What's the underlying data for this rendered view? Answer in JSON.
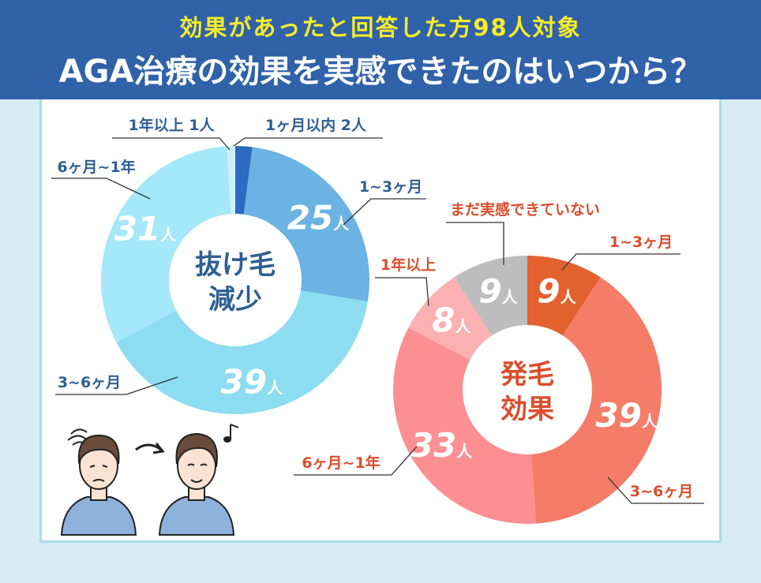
{
  "header": {
    "subtitle": "効果があったと回答した方98人対象",
    "title": "AGA治療の効果を実感できたのはいつから？"
  },
  "chart_data": [
    {
      "type": "pie",
      "title": "抜け毛減少",
      "unit": "人",
      "slices": [
        {
          "label": "1ヶ月以内 2人",
          "value": 2,
          "value_text": "",
          "color": "#2c6bc0"
        },
        {
          "label": "1~3ヶ月",
          "value": 25,
          "value_text": "25",
          "color": "#6ab3e3"
        },
        {
          "label": "3~6ヶ月",
          "value": 39,
          "value_text": "39",
          "color": "#8dddf1"
        },
        {
          "label": "6ヶ月~1年",
          "value": 31,
          "value_text": "31",
          "color": "#a5e8fa"
        },
        {
          "label": "1年以上 1人",
          "value": 1,
          "value_text": "",
          "color": "#cbf2fb"
        }
      ]
    },
    {
      "type": "pie",
      "title": "発毛効果",
      "unit": "人",
      "slices": [
        {
          "label": "1~3ヶ月",
          "value": 9,
          "value_text": "9",
          "color": "#e2612f"
        },
        {
          "label": "3~6ヶ月",
          "value": 39,
          "value_text": "39",
          "color": "#f57c67"
        },
        {
          "label": "6ヶ月~1年",
          "value": 33,
          "value_text": "33",
          "color": "#fc8f92"
        },
        {
          "label": "1年以上",
          "value": 8,
          "value_text": "8",
          "color": "#fbb1b1"
        },
        {
          "label": "まだ実感できていない",
          "value": 9,
          "value_text": "9",
          "color": "#bdbdbd"
        }
      ]
    }
  ],
  "colors": {
    "blue_text": "#2f5f93",
    "red_text": "#dc4d2b",
    "header_bg": "#2f62a8",
    "subtitle": "#f8ec2a"
  },
  "icons": [
    "dizzy-icon",
    "arrow-icon",
    "music-note-icon"
  ]
}
